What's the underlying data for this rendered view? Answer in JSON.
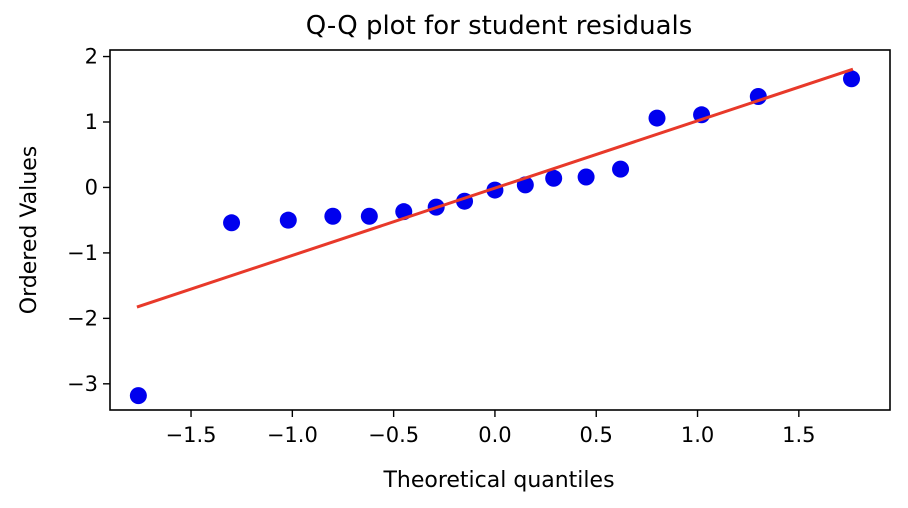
{
  "chart_data": {
    "type": "scatter",
    "title": "Q-Q plot for student residuals",
    "xlabel": "Theoretical quantiles",
    "ylabel": "Ordered Values",
    "xlim": [
      -1.9,
      1.95
    ],
    "ylim": [
      -3.4,
      2.1
    ],
    "x_ticks": [
      -1.5,
      -1.0,
      -0.5,
      0.0,
      0.5,
      1.0,
      1.5
    ],
    "x_tick_labels": [
      "−1.5",
      "−1.0",
      "−0.5",
      "0.0",
      "0.5",
      "1.0",
      "1.5"
    ],
    "y_ticks": [
      -3,
      -2,
      -1,
      0,
      1,
      2
    ],
    "y_tick_labels": [
      "−3",
      "−2",
      "−1",
      "0",
      "1",
      "2"
    ],
    "grid": false,
    "legend": "none",
    "marker_color": "#0000ee",
    "line_color": "#e8392a",
    "points": [
      {
        "x": -1.76,
        "y": -3.18
      },
      {
        "x": -1.3,
        "y": -0.54
      },
      {
        "x": -1.02,
        "y": -0.5
      },
      {
        "x": -0.8,
        "y": -0.44
      },
      {
        "x": -0.62,
        "y": -0.44
      },
      {
        "x": -0.45,
        "y": -0.37
      },
      {
        "x": -0.29,
        "y": -0.3
      },
      {
        "x": -0.15,
        "y": -0.21
      },
      {
        "x": 0.0,
        "y": -0.04
      },
      {
        "x": 0.15,
        "y": 0.04
      },
      {
        "x": 0.29,
        "y": 0.14
      },
      {
        "x": 0.45,
        "y": 0.16
      },
      {
        "x": 0.62,
        "y": 0.28
      },
      {
        "x": 0.8,
        "y": 1.06
      },
      {
        "x": 1.02,
        "y": 1.11
      },
      {
        "x": 1.3,
        "y": 1.39
      },
      {
        "x": 1.76,
        "y": 1.66
      }
    ],
    "fit_line": {
      "x": [
        -1.76,
        1.76
      ],
      "y": [
        -1.82,
        1.8
      ]
    }
  }
}
